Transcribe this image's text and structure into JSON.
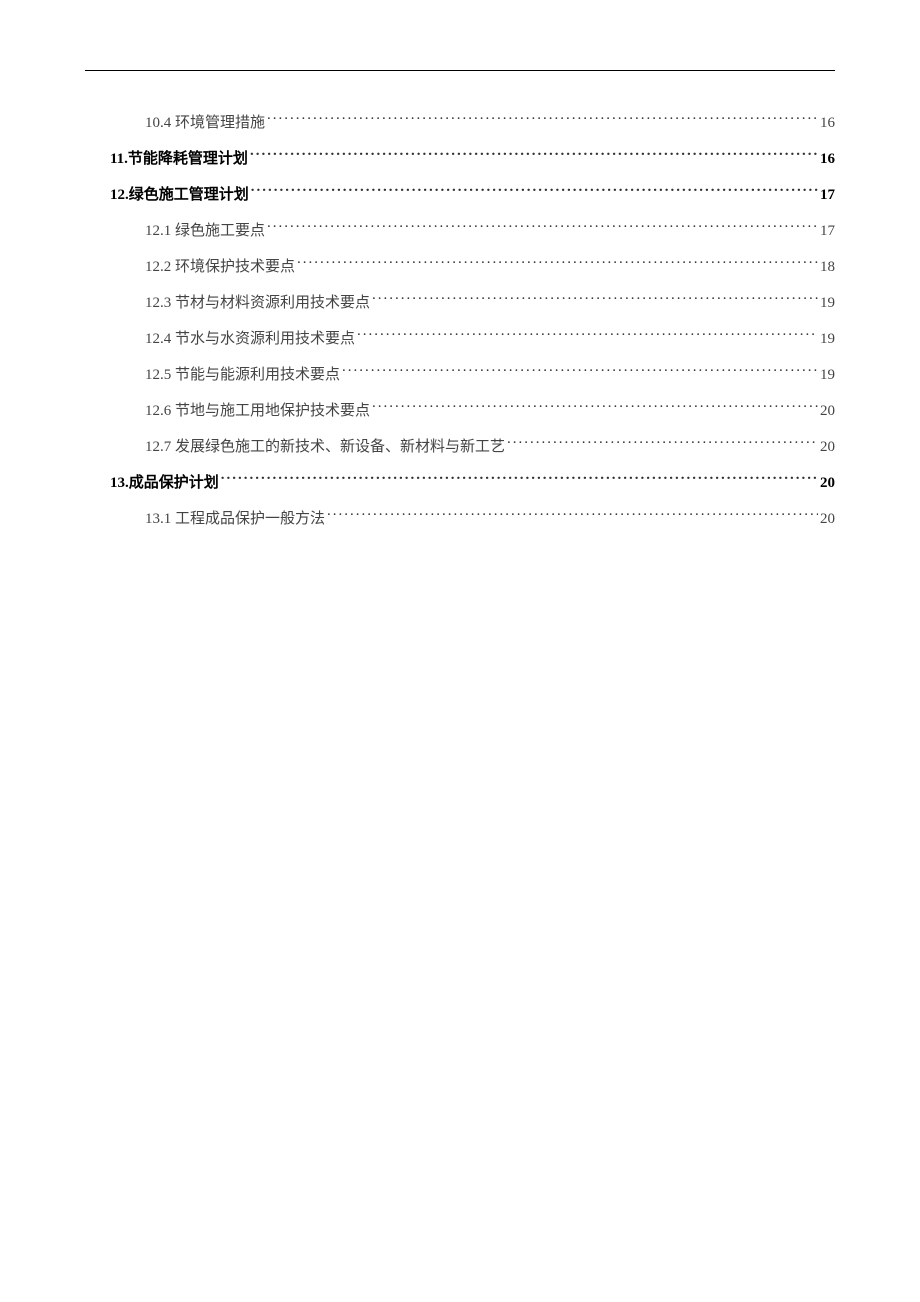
{
  "page": {
    "background_color": "#ffffff",
    "text_color": "#333333",
    "bold_color": "#000000",
    "header_line_color": "#000000"
  },
  "toc": {
    "entries": [
      {
        "level": 2,
        "label": "10.4 环境管理措施",
        "page": "16"
      },
      {
        "level": 1,
        "label": "11.节能降耗管理计划",
        "page": "16"
      },
      {
        "level": 1,
        "label": "12.绿色施工管理计划",
        "page": "17"
      },
      {
        "level": 2,
        "label": "12.1 绿色施工要点",
        "page": "17"
      },
      {
        "level": 2,
        "label": "12.2 环境保护技术要点",
        "page": "18"
      },
      {
        "level": 2,
        "label": "12.3 节材与材料资源利用技术要点",
        "page": "19"
      },
      {
        "level": 2,
        "label": "12.4 节水与水资源利用技术要点",
        "page": "19"
      },
      {
        "level": 2,
        "label": "12.5 节能与能源利用技术要点",
        "page": "19"
      },
      {
        "level": 2,
        "label": "12.6 节地与施工用地保护技术要点",
        "page": "20"
      },
      {
        "level": 2,
        "label": "12.7 发展绿色施工的新技术、新设备、新材料与新工艺",
        "page": "20"
      },
      {
        "level": 1,
        "label": "13.成品保护计划",
        "page": "20"
      },
      {
        "level": 2,
        "label": "13.1  工程成品保护一般方法",
        "page": "20"
      }
    ]
  }
}
